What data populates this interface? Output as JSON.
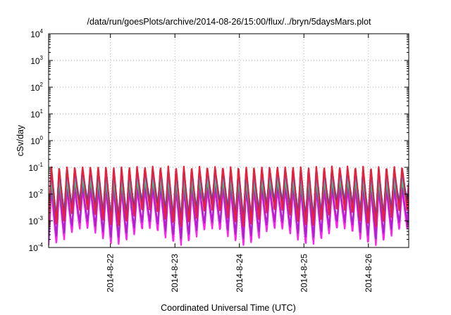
{
  "chart_data": {
    "type": "line",
    "title": "/data/run/goesPlots/archive/2014-08-26/15:00/flux/../bryn/5daysMars.plot",
    "xlabel": "Coordinated Universal Time (UTC)",
    "ylabel": "cSv/day",
    "y_scale": "log",
    "ylim": [
      0.0001,
      10000
    ],
    "y_ticks": [
      {
        "value": 0.0001,
        "base": "10",
        "exp": "-4"
      },
      {
        "value": 0.001,
        "base": "10",
        "exp": "-3"
      },
      {
        "value": 0.01,
        "base": "10",
        "exp": "-2"
      },
      {
        "value": 0.1,
        "base": "10",
        "exp": "-1"
      },
      {
        "value": 1,
        "base": "10",
        "exp": "0"
      },
      {
        "value": 10,
        "base": "10",
        "exp": "1"
      },
      {
        "value": 100,
        "base": "10",
        "exp": "2"
      },
      {
        "value": 1000,
        "base": "10",
        "exp": "3"
      },
      {
        "value": 10000,
        "base": "10",
        "exp": "4"
      }
    ],
    "x_start": "2014-08-21T01:00",
    "x_end": "2014-08-26T15:00",
    "x_tick_labels": [
      "2014-8-22",
      "2014-8-23",
      "2014-8-24",
      "2014-8-25",
      "2014-8-26"
    ],
    "x_ticks": [
      "2014-08-22T00:00",
      "2014-08-23T00:00",
      "2014-08-24T00:00",
      "2014-08-25T00:00",
      "2014-08-26T00:00"
    ],
    "grid": true,
    "oscillation": {
      "period_hours": 2.9,
      "cycles_per_day": 8.2,
      "deep_low_days": [
        "2014-08-21",
        "2014-08-22",
        "2014-08-23",
        "2014-08-24",
        "2014-08-25",
        "2014-08-26"
      ]
    },
    "series": [
      {
        "color": "#e8203a",
        "peak": 0.11,
        "trough": 0.0025
      },
      {
        "color": "#2040e0",
        "peak": 0.095,
        "trough": 0.004
      },
      {
        "color": "#20a0ff",
        "peak": 0.06,
        "trough": 0.006
      },
      {
        "color": "#20d8d0",
        "peak": 0.04,
        "trough": 0.005
      },
      {
        "color": "#20c060",
        "peak": 0.03,
        "trough": 0.004
      },
      {
        "color": "#b020d0",
        "peak": 0.02,
        "trough": 0.0009
      },
      {
        "color": "#ff20f0",
        "peak": 0.015,
        "trough": 0.0005
      }
    ]
  }
}
